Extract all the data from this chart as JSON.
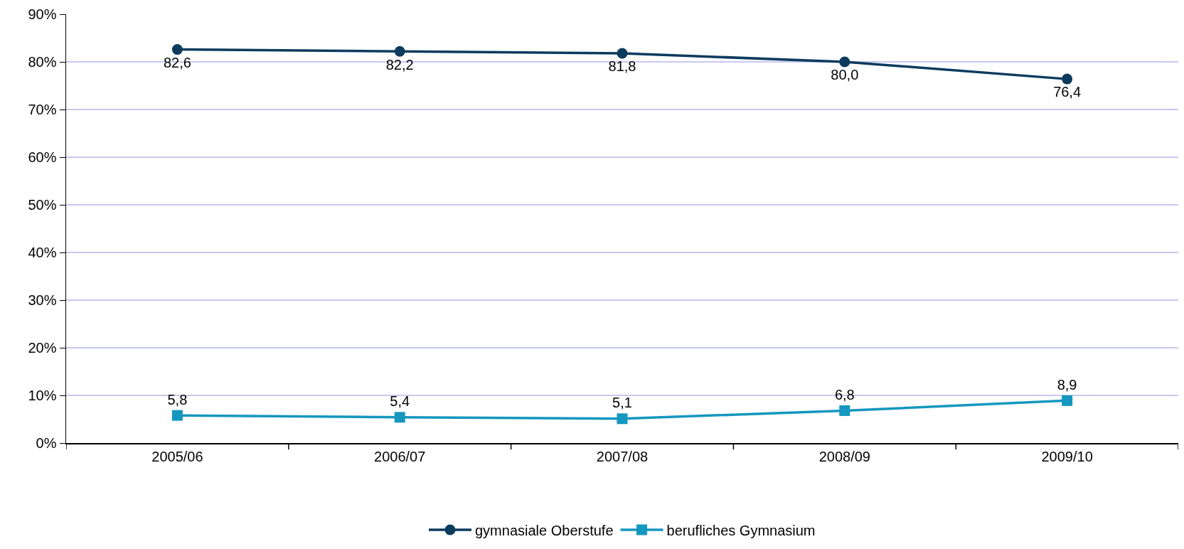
{
  "chart_data": {
    "type": "line",
    "categories": [
      "2005/06",
      "2006/07",
      "2007/08",
      "2008/09",
      "2009/10"
    ],
    "series": [
      {
        "name": "gymnasiale Oberstufe",
        "color": "#0d3b5e",
        "marker": "circle",
        "values": [
          82.6,
          82.2,
          81.8,
          80.0,
          76.4
        ],
        "value_labels": [
          "82,6",
          "82,2",
          "81,8",
          "80,0",
          "76,4"
        ]
      },
      {
        "name": "berufliches Gymnasium",
        "color": "#1597bf",
        "marker": "square",
        "values": [
          5.8,
          5.4,
          5.1,
          6.8,
          8.9
        ],
        "value_labels": [
          "5,8",
          "5,4",
          "5,1",
          "6,8",
          "8,9"
        ]
      }
    ],
    "ylim": [
      0,
      90
    ],
    "yticks": [
      {
        "value": 0,
        "label": "0%"
      },
      {
        "value": 10,
        "label": "10%"
      },
      {
        "value": 20,
        "label": "20%"
      },
      {
        "value": 30,
        "label": "30%"
      },
      {
        "value": 40,
        "label": "40%"
      },
      {
        "value": 50,
        "label": "50%"
      },
      {
        "value": 60,
        "label": "60%"
      },
      {
        "value": 70,
        "label": "70%"
      },
      {
        "value": 80,
        "label": "80%"
      },
      {
        "value": 90,
        "label": "90%"
      }
    ],
    "grid": "y",
    "legend": "bottom",
    "line_style": "solid"
  }
}
